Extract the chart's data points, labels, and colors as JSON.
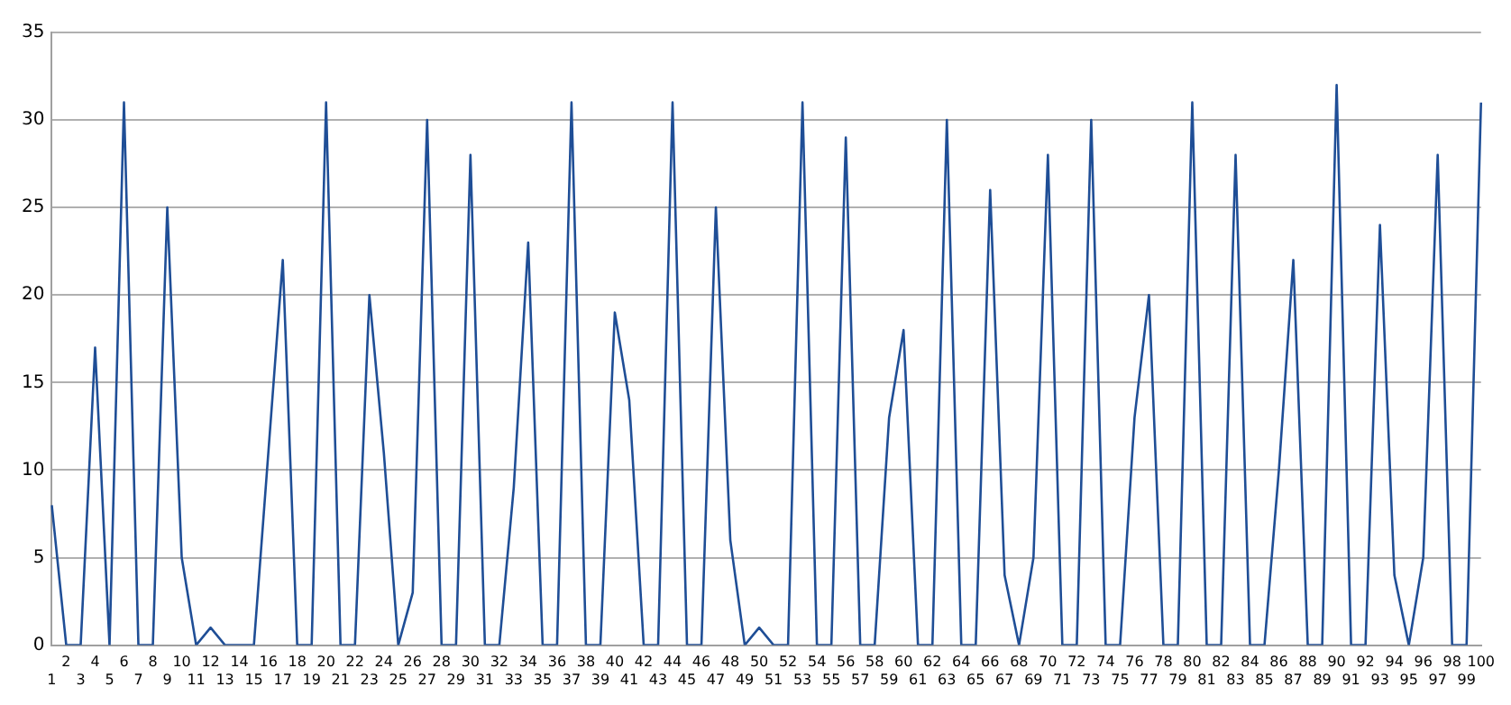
{
  "chart_data": {
    "type": "line",
    "categories": [
      "1",
      "2",
      "3",
      "4",
      "5",
      "6",
      "7",
      "8",
      "9",
      "10",
      "11",
      "12",
      "13",
      "14",
      "15",
      "16",
      "17",
      "18",
      "19",
      "20",
      "21",
      "22",
      "23",
      "24",
      "25",
      "26",
      "27",
      "28",
      "29",
      "30",
      "31",
      "32",
      "33",
      "34",
      "35",
      "36",
      "37",
      "38",
      "39",
      "40",
      "41",
      "42",
      "43",
      "44",
      "45",
      "46",
      "47",
      "48",
      "49",
      "50",
      "51",
      "52",
      "53",
      "54",
      "55",
      "56",
      "57",
      "58",
      "59",
      "60",
      "61",
      "62",
      "63",
      "64",
      "65",
      "66",
      "67",
      "68",
      "69",
      "70",
      "71",
      "72",
      "73",
      "74",
      "75",
      "76",
      "77",
      "78",
      "79",
      "80",
      "81",
      "82",
      "83",
      "84",
      "85",
      "86",
      "87",
      "88",
      "89",
      "90",
      "91",
      "92",
      "93",
      "94",
      "95",
      "96",
      "97",
      "98",
      "99",
      "100"
    ],
    "series": [
      {
        "color": "#1f4e96",
        "values": [
          8,
          0,
          0,
          17,
          0,
          31,
          0,
          0,
          25,
          5,
          0,
          1,
          0,
          0,
          0,
          11,
          22,
          0,
          0,
          31,
          0,
          0,
          20,
          11,
          0,
          3,
          30,
          0,
          0,
          28,
          0,
          0,
          9,
          23,
          0,
          0,
          31,
          0,
          0,
          19,
          14,
          0,
          0,
          31,
          0,
          0,
          25,
          6,
          0,
          1,
          0,
          0,
          31,
          0,
          0,
          29,
          0,
          0,
          13,
          18,
          0,
          0,
          30,
          0,
          0,
          26,
          4,
          0,
          5,
          28,
          0,
          0,
          30,
          0,
          0,
          13,
          20,
          0,
          0,
          31,
          0,
          0,
          28,
          0,
          0,
          10,
          22,
          0,
          0,
          32,
          0,
          0,
          24,
          4,
          0,
          5,
          28,
          0,
          0,
          31
        ]
      }
    ],
    "ylim": [
      0,
      35
    ],
    "yticks": [
      0,
      5,
      10,
      15,
      20,
      25,
      30,
      35
    ],
    "grid": "y",
    "legend": false,
    "marker": "none",
    "line_style": "solid"
  }
}
